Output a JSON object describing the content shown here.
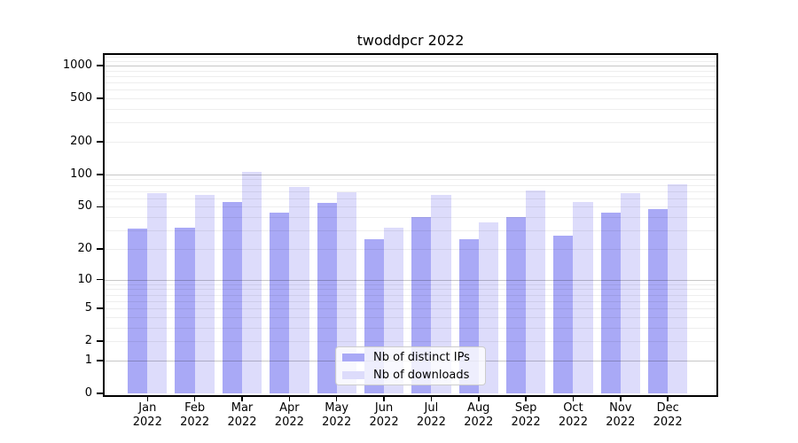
{
  "chart_data": {
    "type": "bar",
    "title": "twoddpcr 2022",
    "categories": [
      "Jan",
      "Feb",
      "Mar",
      "Apr",
      "May",
      "Jun",
      "Jul",
      "Aug",
      "Sep",
      "Oct",
      "Nov",
      "Dec"
    ],
    "category_year": "2022",
    "series": [
      {
        "name": "Nb of distinct IPs",
        "color": "#a9a9f6",
        "values": [
          31,
          32,
          55,
          44,
          54,
          25,
          40,
          25,
          40,
          27,
          44,
          48
        ]
      },
      {
        "name": "Nb of downloads",
        "color": "#dddcfb",
        "values": [
          67,
          65,
          105,
          77,
          68,
          32,
          65,
          36,
          71,
          55,
          67,
          81
        ]
      }
    ],
    "xlabel": "",
    "ylabel": "",
    "y_axis": {
      "scale": "log10(value+1)",
      "tick_values": [
        0,
        1,
        2,
        5,
        10,
        20,
        50,
        100,
        200,
        500,
        1000
      ],
      "minor_grid_values": [
        2,
        3,
        4,
        5,
        6,
        7,
        8,
        9,
        20,
        30,
        40,
        50,
        60,
        70,
        80,
        90,
        200,
        300,
        400,
        500,
        600,
        700,
        800,
        900,
        1100,
        1200
      ],
      "major_grid_values": [
        1,
        10,
        100,
        1000
      ],
      "ylim_top": 1300
    },
    "grid": "on",
    "legend_position": "bottom-center"
  }
}
